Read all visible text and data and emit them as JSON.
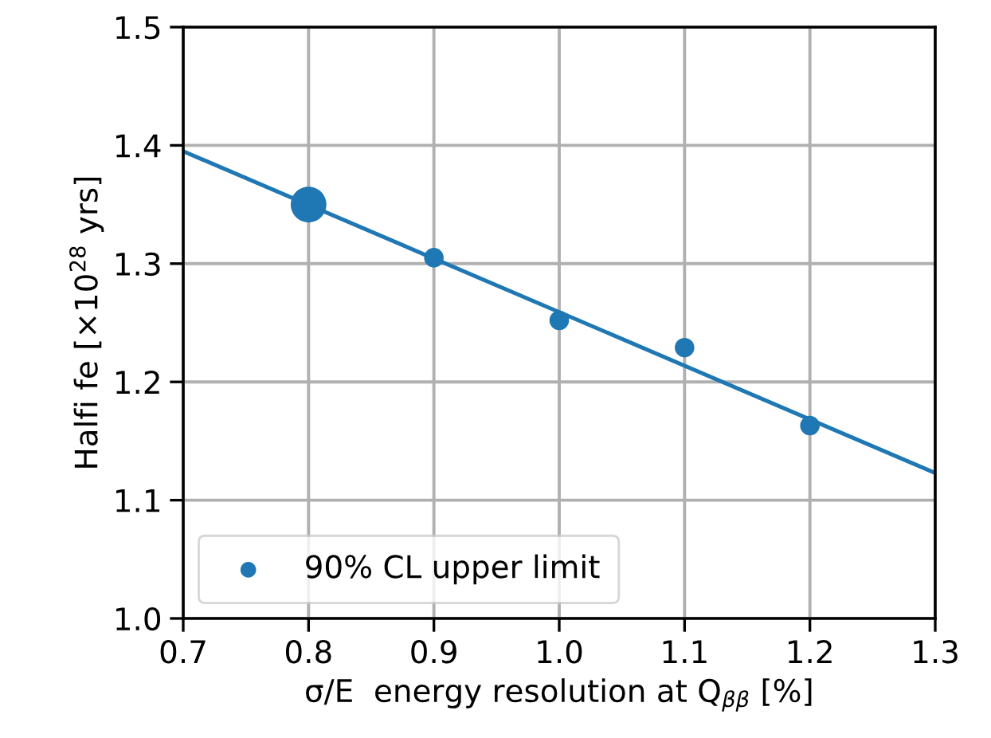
{
  "chart_data": {
    "type": "bubble",
    "xlabel": "σ/E  energy resolution at Q$_{ββ}$ [%]",
    "ylabel": "Halfi fe [×10$^{28}$ yrs]",
    "series": [
      {
        "name": "90% CL upper limit",
        "color": "#1f77b4",
        "x": [
          0.8,
          0.9,
          1.0,
          1.1,
          1.2
        ],
        "values": [
          1.35,
          1.305,
          1.252,
          1.229,
          1.163
        ],
        "sizes": [
          1,
          0.3,
          0.3,
          0.3,
          0.3
        ]
      },
      {
        "type": "line",
        "color": "#1f77b4",
        "x": [
          0.7,
          1.3
        ],
        "values": [
          1.395,
          1.123
        ]
      }
    ],
    "xlim": [
      0.7,
      1.3
    ],
    "xticks": [
      0.7,
      0.8,
      0.9,
      {
        "value": 1.0,
        "label": "1.0"
      },
      1.1,
      1.2,
      1.3
    ],
    "ylim": [
      1.0,
      1.5
    ],
    "yticks": [
      {
        "value": 1.0,
        "label": "1.0"
      },
      1.1,
      1.2,
      1.3,
      1.4,
      1.5
    ],
    "grid": true,
    "legend": "bottom left"
  }
}
